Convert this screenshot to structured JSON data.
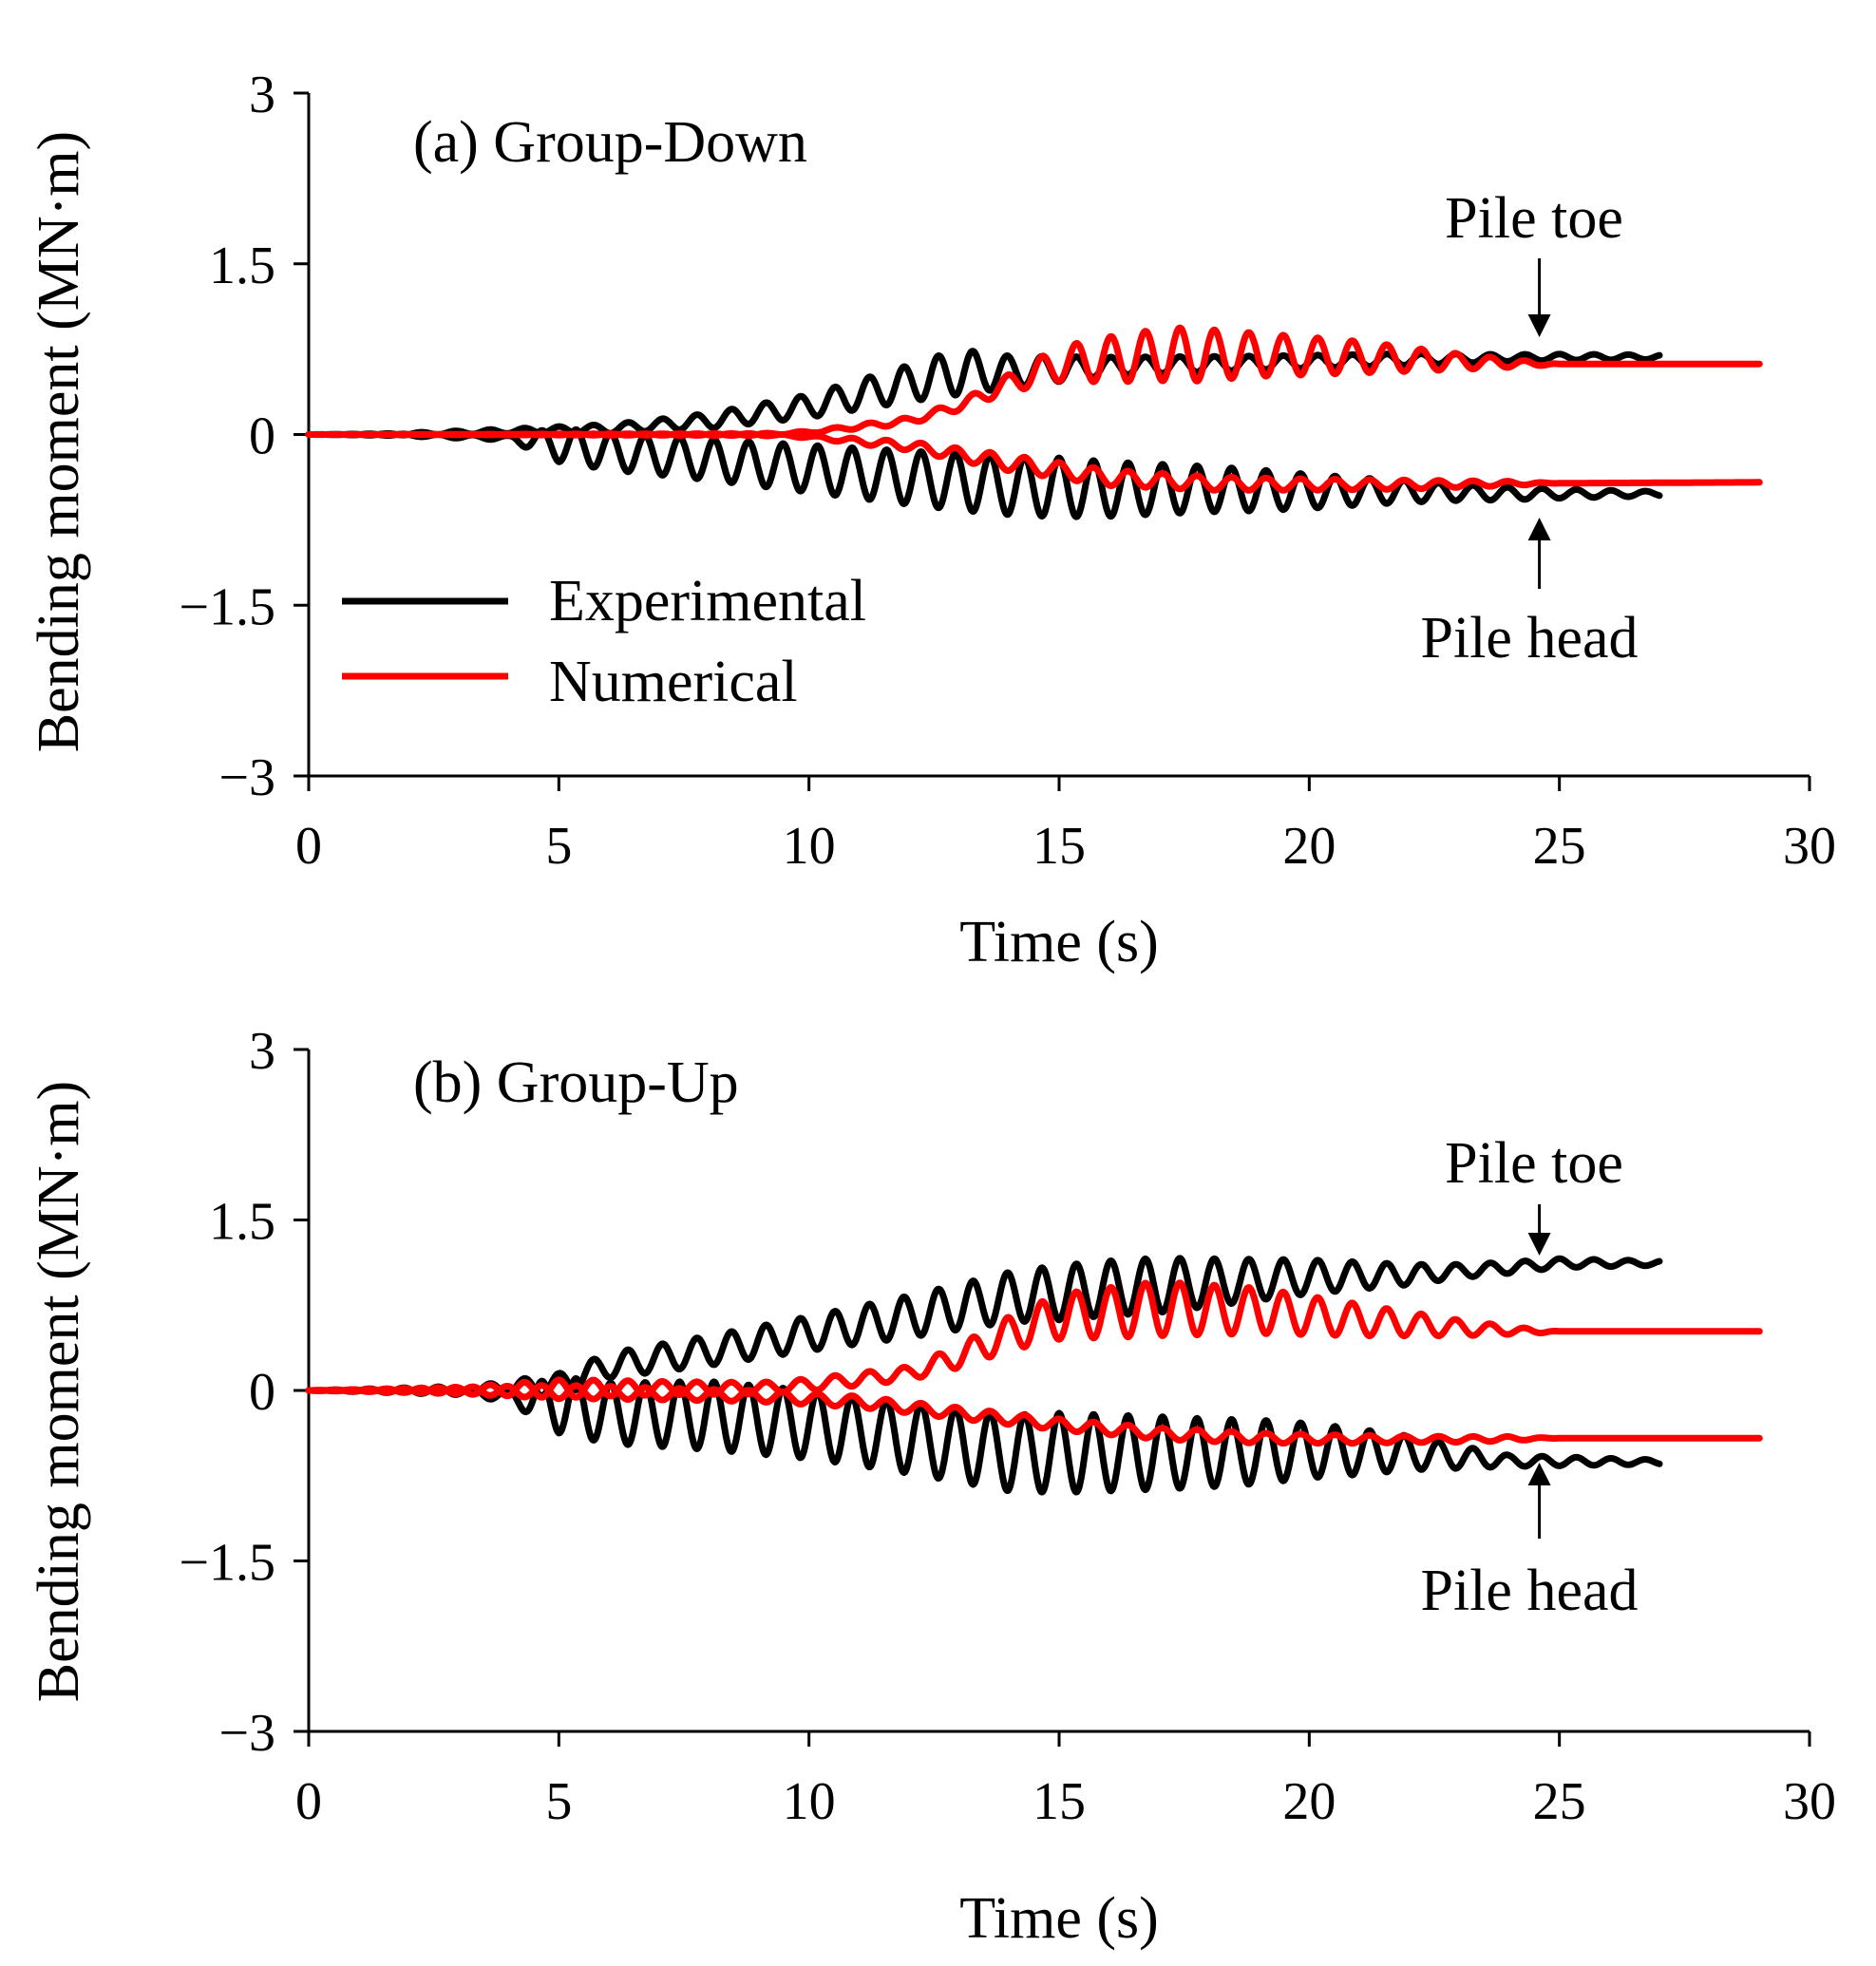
{
  "chart_data": [
    {
      "type": "line",
      "panel_label": "(a) Group-Down",
      "xlabel": "Time (s)",
      "ylabel": "Bending moment (MN·m)",
      "xlim": [
        0,
        30
      ],
      "ylim": [
        -3,
        3
      ],
      "xticks": [
        "0",
        "5",
        "10",
        "15",
        "20",
        "25",
        "30"
      ],
      "yticks": [
        "3",
        "1.5",
        "0",
        "−1.5",
        "−3"
      ],
      "annotations": {
        "upper": "Pile toe",
        "lower": "Pile head"
      },
      "legend": {
        "items": [
          "Experimental",
          "Numerical"
        ],
        "position": "lower-left"
      },
      "colors": {
        "Experimental": "#000000",
        "Numerical": "#ff0000"
      },
      "series": [
        {
          "name": "Experimental",
          "group": "pile-toe",
          "t_end": 27.0,
          "trend": [
            [
              0,
              0.0
            ],
            [
              1.5,
              0.0
            ],
            [
              4,
              0.03
            ],
            [
              6,
              0.05
            ],
            [
              8,
              0.12
            ],
            [
              10,
              0.25
            ],
            [
              12,
              0.45
            ],
            [
              13,
              0.55
            ],
            [
              14,
              0.55
            ],
            [
              16,
              0.6
            ],
            [
              18,
              0.62
            ],
            [
              20,
              0.64
            ],
            [
              22,
              0.66
            ],
            [
              25,
              0.68
            ],
            [
              27,
              0.68
            ]
          ],
          "amp": [
            [
              0,
              0.0
            ],
            [
              4,
              0.02
            ],
            [
              7,
              0.05
            ],
            [
              10,
              0.1
            ],
            [
              12,
              0.16
            ],
            [
              13,
              0.2
            ],
            [
              14,
              0.14
            ],
            [
              16,
              0.08
            ],
            [
              19,
              0.06
            ],
            [
              22,
              0.05
            ],
            [
              24,
              0.03
            ],
            [
              27,
              0.02
            ]
          ]
        },
        {
          "name": "Experimental",
          "group": "pile-head",
          "t_end": 27.0,
          "trend": [
            [
              0,
              0.0
            ],
            [
              1.5,
              0.0
            ],
            [
              4,
              -0.03
            ],
            [
              6,
              -0.15
            ],
            [
              8,
              -0.22
            ],
            [
              10,
              -0.3
            ],
            [
              12,
              -0.38
            ],
            [
              14,
              -0.45
            ],
            [
              16,
              -0.48
            ],
            [
              18,
              -0.48
            ],
            [
              20,
              -0.5
            ],
            [
              22,
              -0.5
            ],
            [
              24,
              -0.52
            ],
            [
              27,
              -0.52
            ]
          ],
          "amp": [
            [
              0,
              0.0
            ],
            [
              4,
              0.02
            ],
            [
              5,
              0.15
            ],
            [
              8,
              0.18
            ],
            [
              11,
              0.22
            ],
            [
              13,
              0.25
            ],
            [
              15,
              0.26
            ],
            [
              17,
              0.22
            ],
            [
              19,
              0.18
            ],
            [
              21,
              0.12
            ],
            [
              23,
              0.07
            ],
            [
              25,
              0.04
            ],
            [
              27,
              0.02
            ]
          ]
        },
        {
          "name": "Numerical",
          "group": "pile-toe",
          "t_end": 29.0,
          "trend": [
            [
              0,
              0.0
            ],
            [
              9,
              0.0
            ],
            [
              10,
              0.02
            ],
            [
              12,
              0.12
            ],
            [
              13,
              0.25
            ],
            [
              14,
              0.45
            ],
            [
              15,
              0.62
            ],
            [
              17,
              0.7
            ],
            [
              19,
              0.7
            ],
            [
              21,
              0.68
            ],
            [
              23,
              0.64
            ],
            [
              24.5,
              0.62
            ],
            [
              29,
              0.62
            ]
          ],
          "amp": [
            [
              0,
              0.0
            ],
            [
              10,
              0.01
            ],
            [
              13,
              0.04
            ],
            [
              14,
              0.08
            ],
            [
              15,
              0.15
            ],
            [
              16,
              0.2
            ],
            [
              17.5,
              0.24
            ],
            [
              19,
              0.19
            ],
            [
              21,
              0.14
            ],
            [
              23,
              0.07
            ],
            [
              24.5,
              0.02
            ],
            [
              25,
              0.0
            ],
            [
              29,
              0.0
            ]
          ]
        },
        {
          "name": "Numerical",
          "group": "pile-head",
          "t_end": 29.0,
          "trend": [
            [
              0,
              0.0
            ],
            [
              9,
              0.0
            ],
            [
              10,
              -0.02
            ],
            [
              12,
              -0.1
            ],
            [
              14,
              -0.25
            ],
            [
              16,
              -0.38
            ],
            [
              18,
              -0.43
            ],
            [
              20,
              -0.44
            ],
            [
              22,
              -0.44
            ],
            [
              24,
              -0.43
            ],
            [
              29,
              -0.42
            ]
          ],
          "amp": [
            [
              0,
              0.0
            ],
            [
              10,
              0.01
            ],
            [
              12,
              0.04
            ],
            [
              14,
              0.07
            ],
            [
              16,
              0.07
            ],
            [
              18,
              0.06
            ],
            [
              20,
              0.05
            ],
            [
              22,
              0.04
            ],
            [
              24,
              0.02
            ],
            [
              25,
              0.0
            ],
            [
              29,
              0.0
            ]
          ]
        }
      ]
    },
    {
      "type": "line",
      "panel_label": "(b) Group-Up",
      "xlabel": "Time (s)",
      "ylabel": "Bending moment (MN·m)",
      "xlim": [
        0,
        30
      ],
      "ylim": [
        -3,
        3
      ],
      "xticks": [
        "0",
        "5",
        "10",
        "15",
        "20",
        "25",
        "30"
      ],
      "yticks": [
        "3",
        "1.5",
        "0",
        "−1.5",
        "−3"
      ],
      "annotations": {
        "upper": "Pile toe",
        "lower": "Pile head"
      },
      "colors": {
        "Experimental": "#000000",
        "Numerical": "#ff0000"
      },
      "series": [
        {
          "name": "Experimental",
          "group": "pile-toe",
          "t_end": 27.0,
          "trend": [
            [
              0,
              0.0
            ],
            [
              3,
              0.0
            ],
            [
              5,
              0.05
            ],
            [
              6,
              0.22
            ],
            [
              8,
              0.35
            ],
            [
              10,
              0.5
            ],
            [
              12,
              0.65
            ],
            [
              14,
              0.82
            ],
            [
              16,
              0.9
            ],
            [
              18,
              0.95
            ],
            [
              20,
              1.0
            ],
            [
              22,
              1.02
            ],
            [
              24,
              1.08
            ],
            [
              25,
              1.12
            ],
            [
              27,
              1.12
            ]
          ],
          "amp": [
            [
              0,
              0.0
            ],
            [
              3,
              0.02
            ],
            [
              5,
              0.1
            ],
            [
              7,
              0.12
            ],
            [
              10,
              0.15
            ],
            [
              13,
              0.2
            ],
            [
              15,
              0.24
            ],
            [
              17,
              0.24
            ],
            [
              19,
              0.18
            ],
            [
              21,
              0.12
            ],
            [
              23,
              0.06
            ],
            [
              25,
              0.04
            ],
            [
              27,
              0.02
            ]
          ]
        },
        {
          "name": "Experimental",
          "group": "pile-head",
          "t_end": 27.0,
          "trend": [
            [
              0,
              0.0
            ],
            [
              3,
              0.0
            ],
            [
              4,
              -0.05
            ],
            [
              6,
              -0.2
            ],
            [
              8,
              -0.22
            ],
            [
              10,
              -0.3
            ],
            [
              12,
              -0.42
            ],
            [
              14,
              -0.55
            ],
            [
              16,
              -0.55
            ],
            [
              18,
              -0.55
            ],
            [
              20,
              -0.53
            ],
            [
              22,
              -0.55
            ],
            [
              24,
              -0.62
            ],
            [
              27,
              -0.63
            ]
          ],
          "amp": [
            [
              0,
              0.0
            ],
            [
              4,
              0.05
            ],
            [
              5,
              0.25
            ],
            [
              8,
              0.3
            ],
            [
              11,
              0.3
            ],
            [
              13,
              0.32
            ],
            [
              15,
              0.35
            ],
            [
              17,
              0.32
            ],
            [
              19,
              0.28
            ],
            [
              21,
              0.2
            ],
            [
              23,
              0.1
            ],
            [
              24,
              0.05
            ],
            [
              25,
              0.04
            ],
            [
              27,
              0.02
            ]
          ]
        },
        {
          "name": "Numerical",
          "group": "pile-toe",
          "t_end": 29.0,
          "trend": [
            [
              0,
              0.0
            ],
            [
              3,
              0.0
            ],
            [
              6,
              0.02
            ],
            [
              9,
              0.02
            ],
            [
              10,
              0.05
            ],
            [
              12,
              0.15
            ],
            [
              13,
              0.3
            ],
            [
              14,
              0.5
            ],
            [
              15,
              0.65
            ],
            [
              17,
              0.72
            ],
            [
              19,
              0.7
            ],
            [
              21,
              0.62
            ],
            [
              23,
              0.55
            ],
            [
              24.5,
              0.52
            ],
            [
              29,
              0.52
            ]
          ],
          "amp": [
            [
              0,
              0.0
            ],
            [
              3,
              0.03
            ],
            [
              5,
              0.08
            ],
            [
              7,
              0.06
            ],
            [
              9,
              0.05
            ],
            [
              12,
              0.06
            ],
            [
              13,
              0.1
            ],
            [
              14,
              0.15
            ],
            [
              15,
              0.2
            ],
            [
              17,
              0.24
            ],
            [
              19,
              0.2
            ],
            [
              21,
              0.14
            ],
            [
              23,
              0.07
            ],
            [
              24.5,
              0.02
            ],
            [
              25,
              0.0
            ],
            [
              29,
              0.0
            ]
          ]
        },
        {
          "name": "Numerical",
          "group": "pile-head",
          "t_end": 29.0,
          "trend": [
            [
              0,
              0.0
            ],
            [
              3,
              0.0
            ],
            [
              6,
              -0.02
            ],
            [
              9,
              -0.05
            ],
            [
              11,
              -0.1
            ],
            [
              13,
              -0.2
            ],
            [
              15,
              -0.3
            ],
            [
              17,
              -0.38
            ],
            [
              19,
              -0.42
            ],
            [
              21,
              -0.43
            ],
            [
              23,
              -0.43
            ],
            [
              25,
              -0.42
            ],
            [
              29,
              -0.42
            ]
          ],
          "amp": [
            [
              0,
              0.0
            ],
            [
              3,
              0.03
            ],
            [
              5,
              0.06
            ],
            [
              8,
              0.05
            ],
            [
              10,
              0.05
            ],
            [
              13,
              0.05
            ],
            [
              16,
              0.05
            ],
            [
              18,
              0.05
            ],
            [
              20,
              0.04
            ],
            [
              22,
              0.03
            ],
            [
              24,
              0.02
            ],
            [
              25,
              0.0
            ],
            [
              29,
              0.0
            ]
          ]
        }
      ]
    }
  ]
}
